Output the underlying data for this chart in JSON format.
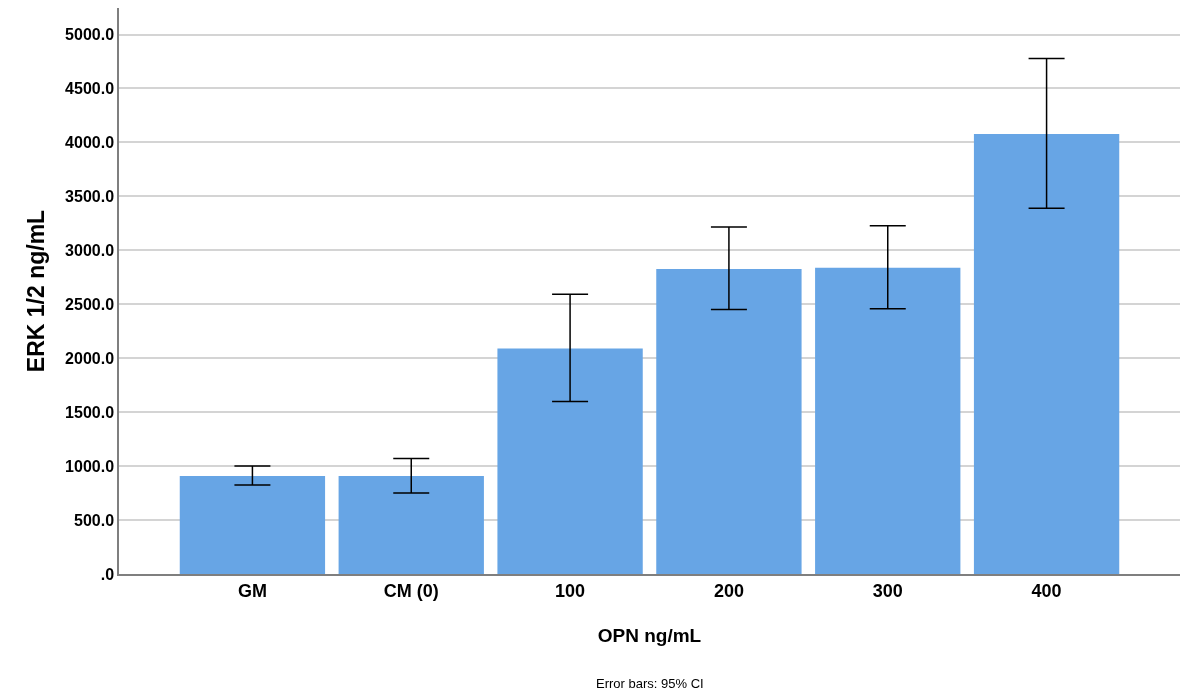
{
  "chart_data": {
    "type": "bar",
    "xlabel": "OPN ng/mL",
    "ylabel": "ERK 1/2 ng/mL",
    "categories": [
      "GM",
      "CM (0)",
      "100",
      "200",
      "300",
      "400"
    ],
    "values": [
      908,
      908,
      2089,
      2828,
      2838,
      4079
    ],
    "errors": [
      [
        825,
        1001
      ],
      [
        751,
        1070
      ],
      [
        1599,
        2592
      ],
      [
        2451,
        3217
      ],
      [
        2459,
        3228
      ],
      [
        3389,
        4779
      ]
    ],
    "color": "#67a5e5",
    "ylim": [
      0,
      5246
    ],
    "yticks": [
      {
        "value": 0,
        "label": ".0"
      },
      {
        "value": 500,
        "label": "500.0"
      },
      {
        "value": 1000,
        "label": "1000.0"
      },
      {
        "value": 1500,
        "label": "1500.0"
      },
      {
        "value": 2000,
        "label": "2000.0"
      },
      {
        "value": 2500,
        "label": "2500.0"
      },
      {
        "value": 3000,
        "label": "3000.0"
      },
      {
        "value": 3500,
        "label": "3500.0"
      },
      {
        "value": 4000,
        "label": "4000.0"
      },
      {
        "value": 4500,
        "label": "4500.0"
      },
      {
        "value": 5000,
        "label": "5000.0"
      }
    ],
    "grid": "y",
    "annotations": [
      "Error bars: 95% CI"
    ]
  }
}
